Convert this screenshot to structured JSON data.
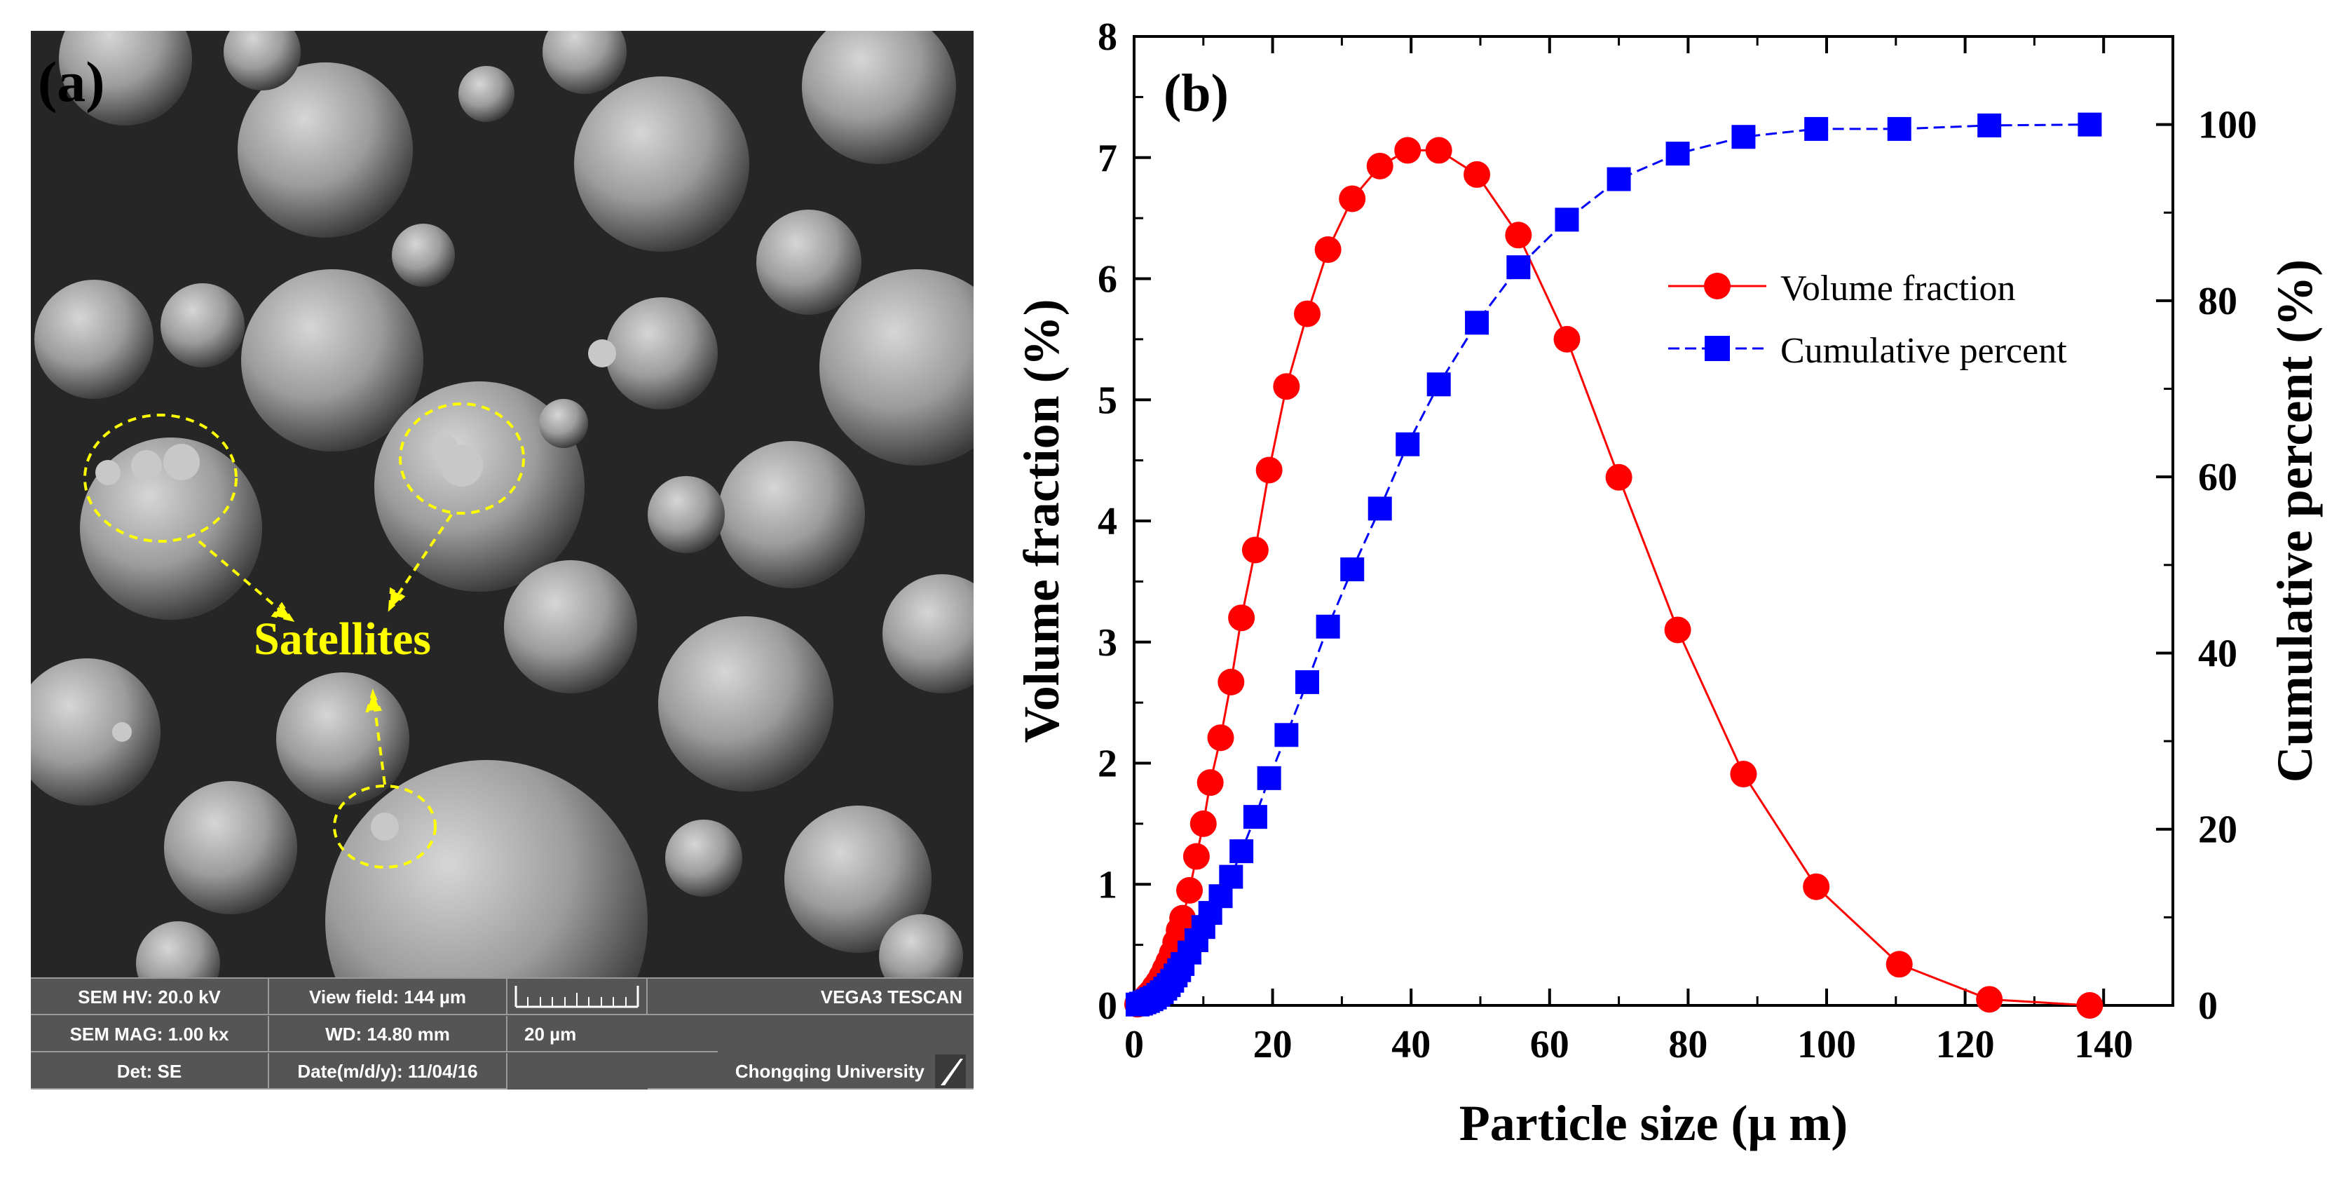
{
  "panel_a": {
    "label": "(a)",
    "annotation": "Satellites",
    "info_bar": {
      "hv": "SEM HV: 20.0 kV",
      "view_field": "View field: 144 µm",
      "instrument": "VEGA3 TESCAN",
      "mag": "SEM MAG: 1.00 kx",
      "wd": "WD: 14.80 mm",
      "scale_label": "20 µm",
      "detector": "Det: SE",
      "date": "Date(m/d/y): 11/04/16",
      "institution": "Chongqing University"
    }
  },
  "chart_data": {
    "type": "line",
    "panel_label": "(b)",
    "xlabel": "Particle size (μ m)",
    "ylabel": "Volume fraction (%)",
    "y2label": "Cumulative percent (%)",
    "xlim": [
      0,
      150
    ],
    "ylim": [
      0,
      8
    ],
    "y2lim": [
      0,
      110
    ],
    "xticks": [
      "0",
      "20",
      "40",
      "60",
      "80",
      "100",
      "120",
      "140"
    ],
    "yticks": [
      "0",
      "1",
      "2",
      "3",
      "4",
      "5",
      "6",
      "7",
      "8"
    ],
    "y2ticks": [
      "0",
      "20",
      "40",
      "60",
      "80",
      "100"
    ],
    "legend_position": "top-right",
    "colors": {
      "volume": "#ff0000",
      "cumulative": "#0000ff",
      "axis": "#000000"
    },
    "series": [
      {
        "name": "Volume fraction",
        "axis": "left",
        "marker": "circle",
        "x": [
          0.5,
          1,
          1.5,
          2,
          2.5,
          3,
          3.5,
          4,
          4.5,
          5,
          5.5,
          6,
          6.5,
          7,
          8,
          9,
          10,
          11,
          12.5,
          14,
          15.5,
          17.5,
          19.5,
          22,
          25,
          28,
          31.5,
          35.5,
          39.5,
          44,
          49.5,
          55.5,
          62.5,
          70,
          78.5,
          88,
          98.5,
          110.5,
          123.5,
          138
        ],
        "values": [
          0.01,
          0.03,
          0.05,
          0.08,
          0.11,
          0.15,
          0.19,
          0.24,
          0.3,
          0.36,
          0.43,
          0.52,
          0.62,
          0.72,
          0.95,
          1.23,
          1.5,
          1.84,
          2.21,
          2.67,
          3.2,
          3.76,
          4.42,
          5.11,
          5.71,
          6.24,
          6.66,
          6.93,
          7.06,
          7.06,
          6.86,
          6.36,
          5.5,
          4.36,
          3.1,
          1.91,
          0.98,
          0.34,
          0.05,
          0.0
        ]
      },
      {
        "name": "Cumulative percent",
        "axis": "right",
        "marker": "square",
        "x": [
          0.5,
          1,
          1.5,
          2,
          2.5,
          3,
          3.5,
          4,
          4.5,
          5,
          5.5,
          6,
          6.5,
          7,
          8,
          9,
          10,
          11,
          12.5,
          14,
          15.5,
          17.5,
          19.5,
          22,
          25,
          28,
          31.5,
          35.5,
          39.5,
          44,
          49.5,
          55.5,
          62.5,
          70,
          78.5,
          88,
          98.5,
          110.5,
          123.5,
          138
        ],
        "values": [
          0.1,
          0.2,
          0.35,
          0.5,
          0.7,
          0.9,
          1.2,
          1.5,
          1.9,
          2.3,
          2.8,
          3.4,
          4.0,
          4.7,
          6.0,
          7.4,
          8.9,
          10.5,
          12.4,
          14.6,
          17.5,
          21.4,
          25.8,
          30.7,
          36.7,
          43.0,
          49.5,
          56.4,
          63.7,
          70.5,
          77.5,
          83.8,
          89.2,
          93.8,
          96.7,
          98.6,
          99.5,
          99.5,
          99.9,
          100.0
        ]
      }
    ]
  }
}
